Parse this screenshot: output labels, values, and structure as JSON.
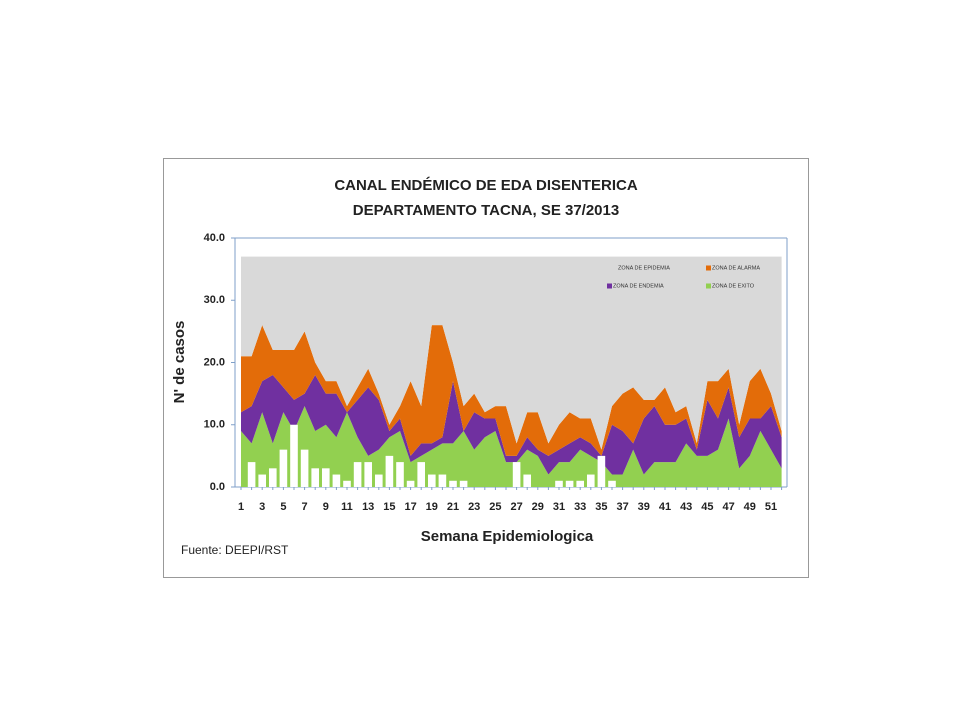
{
  "chart_data": {
    "type": "stacked_area_bar",
    "title": [
      "CANAL ENDÉMICO DE EDA DISENTERICA",
      "DEPARTAMENTO TACNA,  SE 37/2013"
    ],
    "x_label": "Semana Epidemiologica",
    "y_label": "N' de casos",
    "source": "Fuente: DEEPI/RST",
    "categories": [
      1,
      null,
      3,
      null,
      5,
      null,
      7,
      null,
      9,
      null,
      11,
      null,
      13,
      null,
      15,
      null,
      17,
      null,
      19,
      null,
      21,
      null,
      23,
      null,
      25,
      null,
      27,
      null,
      29,
      null,
      31,
      null,
      33,
      null,
      35,
      null,
      37,
      null,
      39,
      null,
      41,
      null,
      43,
      null,
      45,
      null,
      47,
      null,
      49,
      null,
      51,
      null
    ],
    "ylim": [
      0,
      40
    ],
    "yticks": [
      {
        "value": 0,
        "label": "0.0"
      },
      {
        "value": 10,
        "label": "10.0"
      },
      {
        "value": 20,
        "label": "20.0"
      },
      {
        "value": 30,
        "label": "30.0"
      },
      {
        "value": 40,
        "label": "40.0"
      }
    ],
    "series": [
      {
        "name": "ZONA DE EXITO",
        "color": "#92d050",
        "values": [
          9,
          7,
          12,
          7,
          12,
          9,
          13,
          9,
          10,
          8,
          12,
          8,
          5,
          6,
          8,
          9,
          4,
          5,
          6,
          7,
          7,
          9,
          6,
          8,
          9,
          4,
          4,
          6,
          5,
          2,
          4,
          4,
          6,
          5,
          4,
          2,
          2,
          6,
          2,
          4,
          4,
          4,
          7,
          5,
          5,
          6,
          11,
          3,
          5,
          9,
          6,
          3
        ]
      },
      {
        "name": "ZONA DE ENDEMIA",
        "color": "#7030a0",
        "values": [
          3,
          6,
          5,
          11,
          4,
          5,
          2,
          9,
          5,
          7,
          0,
          6,
          11,
          8,
          1,
          2,
          1,
          2,
          1,
          1,
          10,
          0,
          6,
          3,
          2,
          1,
          1,
          2,
          1,
          3,
          2,
          3,
          2,
          2,
          1,
          8,
          7,
          1,
          9,
          9,
          6,
          6,
          4,
          1,
          9,
          5,
          5,
          5,
          6,
          2,
          7,
          5
        ]
      },
      {
        "name": "ZONA DE ALARMA",
        "color": "#e36c09",
        "values": [
          9,
          8,
          9,
          4,
          6,
          8,
          10,
          2,
          2,
          2,
          1,
          2,
          3,
          1,
          1,
          2,
          12,
          6,
          19,
          18,
          3,
          4,
          3,
          1,
          2,
          8,
          2,
          4,
          6,
          2,
          4,
          5,
          3,
          4,
          1,
          3,
          6,
          9,
          3,
          1,
          6,
          2,
          2,
          1,
          3,
          6,
          3,
          2,
          6,
          8,
          2,
          1
        ]
      },
      {
        "name": "ZONA DE EPIDEMIA",
        "color": "#d9d9d9",
        "values": [
          16,
          16,
          11,
          15,
          15,
          15,
          12,
          17,
          20,
          20,
          24,
          21,
          18,
          22,
          27,
          24,
          20,
          24,
          11,
          11,
          17,
          24,
          22,
          25,
          24,
          24,
          30,
          25,
          25,
          30,
          27,
          25,
          26,
          26,
          31,
          24,
          22,
          21,
          23,
          23,
          21,
          25,
          24,
          30,
          20,
          20,
          18,
          27,
          20,
          18,
          22,
          28
        ]
      }
    ],
    "bars": {
      "color": "#ffffff",
      "values": [
        0,
        4,
        2,
        3,
        6,
        10,
        6,
        3,
        3,
        2,
        1,
        4,
        4,
        2,
        5,
        4,
        1,
        4,
        2,
        2,
        1,
        1,
        0,
        0,
        0,
        0,
        4,
        2,
        0,
        0,
        1,
        1,
        1,
        2,
        5,
        1,
        0,
        null,
        null,
        null,
        null,
        null,
        null,
        null,
        null,
        null,
        null,
        null,
        null,
        null,
        null,
        null
      ]
    }
  }
}
